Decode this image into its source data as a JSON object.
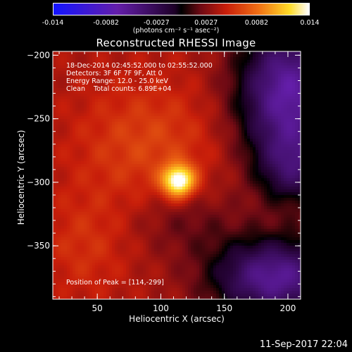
{
  "colorbar": {
    "ticks": [
      "-0.014",
      "-0.0082",
      "-0.0027",
      "0.0027",
      "0.0082",
      "0.014"
    ],
    "tick_values": [
      -0.014,
      -0.0082,
      -0.0027,
      0.0027,
      0.0082,
      0.014
    ],
    "range": [
      -0.014,
      0.014
    ],
    "label": "(photons cm⁻² s⁻¹ asec⁻²)"
  },
  "chart_data": {
    "type": "heatmap",
    "title": "Reconstructed RHESSI Image",
    "xlabel": "Heliocentric X (arcsec)",
    "ylabel": "Heliocentric Y (arcsec)",
    "xlim": [
      15,
      210
    ],
    "ylim": [
      -392,
      -197
    ],
    "x_ticks": [
      50,
      100,
      150,
      200
    ],
    "y_ticks": [
      -200,
      -250,
      -300,
      -350
    ],
    "x_tick_labels": [
      "50",
      "100",
      "150",
      "200"
    ],
    "y_tick_labels": [
      "−200",
      "−250",
      "−300",
      "−350"
    ],
    "peak": [
      114,
      -299
    ],
    "peak_value": 0.014,
    "info_lines": [
      "18-Dec-2014 02:45:52.000 to 02:55:52.000",
      "Detectors: 3F 6F 7F 9F, Att 0",
      "Energy Range: 12.0 - 25.0 keV",
      "Clean    Total counts: 6.89E+04"
    ],
    "peak_label": "Position of Peak = [114,-299]"
  },
  "footer": {
    "date": "11-Sep-2017 22:04"
  },
  "colors": {
    "negative": "#5a1f9a",
    "zero": "#000000",
    "mid": "#cc2a10",
    "peak": "#ffffff"
  }
}
